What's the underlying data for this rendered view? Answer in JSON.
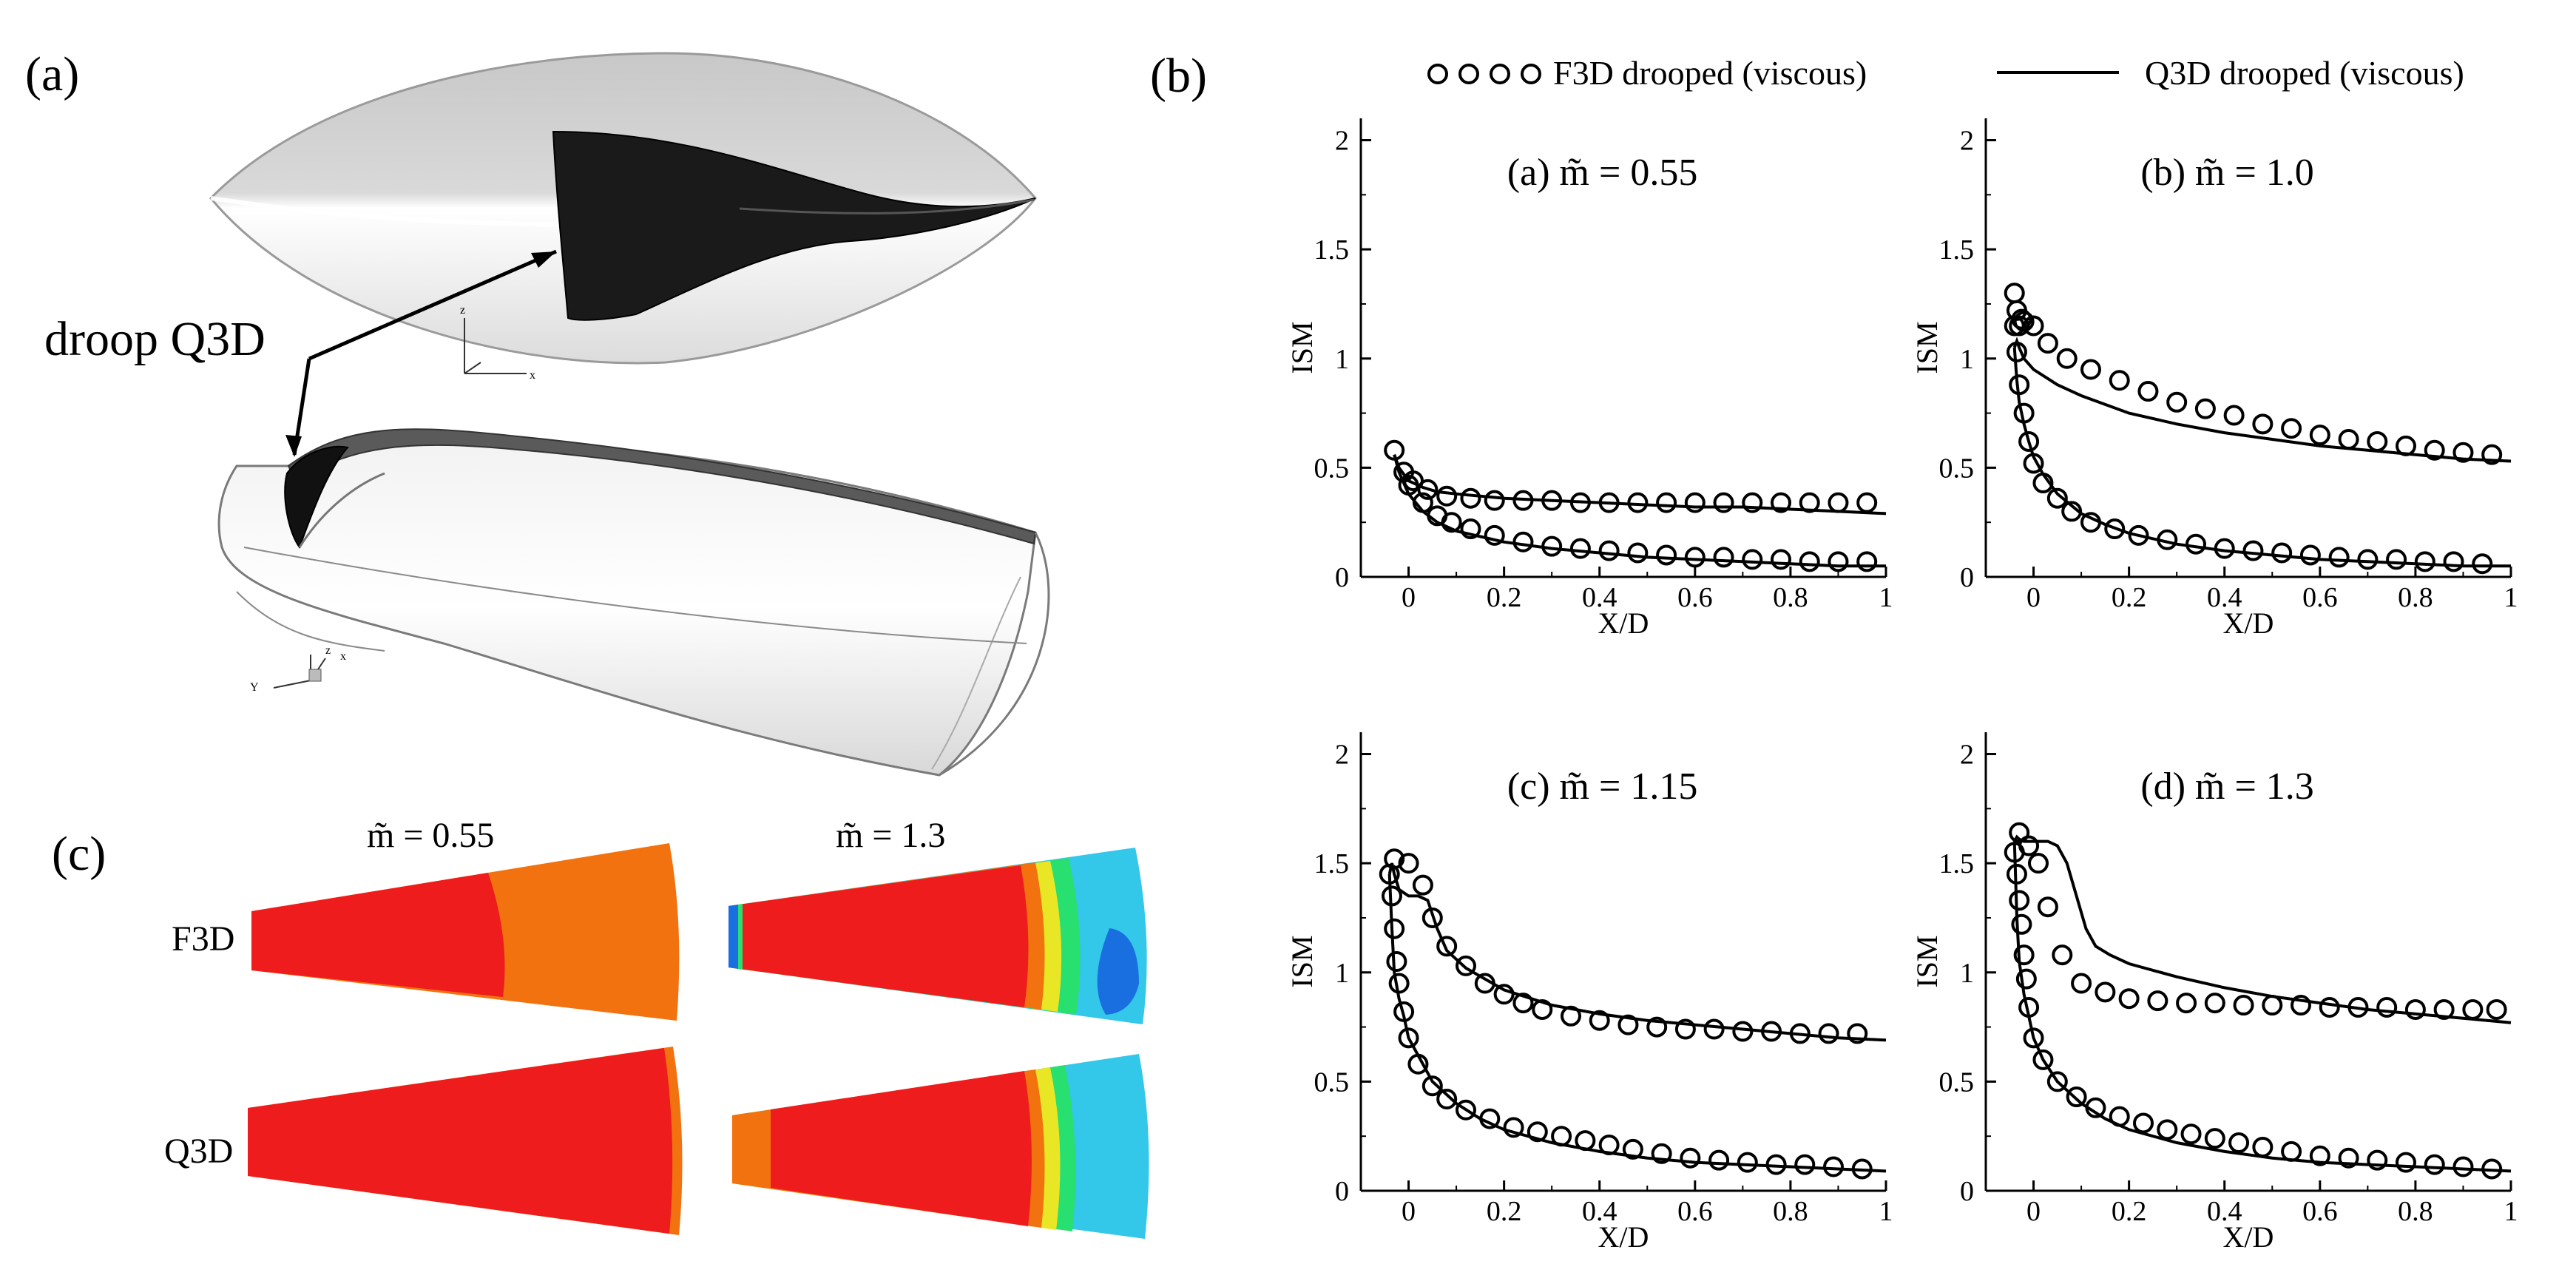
{
  "figure": {
    "panel_a_label": "(a)",
    "panel_b_label": "(b)",
    "panel_c_label": "(c)",
    "droop_annotation": "droop Q3D",
    "axis_triad_labels": [
      "z",
      "x",
      "Y",
      "z",
      "x"
    ]
  },
  "legend": {
    "markers_label": "F3D drooped (viscous)",
    "line_label": "Q3D drooped (viscous)"
  },
  "contours": {
    "col1_title": "m̃ = 0.55",
    "col2_title": "m̃ = 1.3",
    "row1_label": "F3D",
    "row2_label": "Q3D",
    "colors": {
      "red": "#ee1c1c",
      "orange": "#f2720f",
      "blue": "#1a6fe0",
      "cyan": "#33c7ea",
      "green": "#27e070",
      "yellow": "#e8e625"
    }
  },
  "chart_data": [
    {
      "type": "line",
      "title": "(a) m̃ = 0.55",
      "xlabel": "X/D",
      "ylabel": "ISM",
      "xlim": [
        -0.1,
        1.0
      ],
      "ylim": [
        0,
        2.1
      ],
      "xticks": [
        "0",
        "0.2",
        "0.4",
        "0.6",
        "0.8",
        "1"
      ],
      "yticks": [
        "0",
        "0.5",
        "1",
        "1.5",
        "2"
      ],
      "series": [
        {
          "name": "Q3D drooped (viscous)",
          "style": "line",
          "x": [
            -0.03,
            -0.02,
            0.0,
            0.03,
            0.06,
            0.1,
            0.2,
            0.3,
            0.4,
            0.5,
            0.6,
            0.7,
            0.8,
            0.9,
            1.0
          ],
          "y": [
            0.56,
            0.5,
            0.44,
            0.41,
            0.39,
            0.38,
            0.36,
            0.35,
            0.34,
            0.33,
            0.32,
            0.32,
            0.31,
            0.3,
            0.29
          ]
        },
        {
          "name": "Q3D drooped (viscous)",
          "style": "line",
          "x": [
            -0.03,
            -0.02,
            0.0,
            0.03,
            0.06,
            0.1,
            0.2,
            0.3,
            0.4,
            0.5,
            0.6,
            0.7,
            0.8,
            0.9,
            1.0
          ],
          "y": [
            0.56,
            0.48,
            0.38,
            0.3,
            0.25,
            0.21,
            0.16,
            0.13,
            0.11,
            0.09,
            0.08,
            0.07,
            0.06,
            0.05,
            0.05
          ]
        },
        {
          "name": "F3D drooped (viscous)",
          "style": "markers",
          "x": [
            -0.03,
            -0.01,
            0.01,
            0.04,
            0.08,
            0.13,
            0.18,
            0.24,
            0.3,
            0.36,
            0.42,
            0.48,
            0.54,
            0.6,
            0.66,
            0.72,
            0.78,
            0.84,
            0.9,
            0.96
          ],
          "y": [
            0.58,
            0.48,
            0.44,
            0.4,
            0.37,
            0.36,
            0.35,
            0.35,
            0.35,
            0.34,
            0.34,
            0.34,
            0.34,
            0.34,
            0.34,
            0.34,
            0.34,
            0.34,
            0.34,
            0.34
          ]
        },
        {
          "name": "F3D drooped (viscous)",
          "style": "markers",
          "x": [
            0.0,
            0.03,
            0.06,
            0.09,
            0.13,
            0.18,
            0.24,
            0.3,
            0.36,
            0.42,
            0.48,
            0.54,
            0.6,
            0.66,
            0.72,
            0.78,
            0.84,
            0.9,
            0.96
          ],
          "y": [
            0.42,
            0.34,
            0.28,
            0.25,
            0.22,
            0.19,
            0.16,
            0.14,
            0.13,
            0.12,
            0.11,
            0.1,
            0.09,
            0.09,
            0.08,
            0.08,
            0.07,
            0.07,
            0.07
          ]
        }
      ]
    },
    {
      "type": "line",
      "title": "(b) m̃ = 1.0",
      "xlabel": "X/D",
      "ylabel": "ISM",
      "xlim": [
        -0.1,
        1.0
      ],
      "ylim": [
        0,
        2.1
      ],
      "xticks": [
        "0",
        "0.2",
        "0.4",
        "0.6",
        "0.8",
        "1"
      ],
      "yticks": [
        "0",
        "0.5",
        "1",
        "1.5",
        "2"
      ],
      "series": [
        {
          "name": "Q3D drooped (viscous)",
          "style": "line",
          "x": [
            -0.04,
            -0.035,
            -0.03,
            -0.02,
            0.0,
            0.05,
            0.1,
            0.2,
            0.3,
            0.4,
            0.5,
            0.6,
            0.7,
            0.8,
            0.9,
            1.0
          ],
          "y": [
            1.05,
            1.08,
            1.05,
            1.0,
            0.95,
            0.88,
            0.83,
            0.75,
            0.7,
            0.66,
            0.63,
            0.6,
            0.58,
            0.56,
            0.54,
            0.53
          ]
        },
        {
          "name": "Q3D drooped (viscous)",
          "style": "line",
          "x": [
            -0.04,
            -0.035,
            -0.03,
            -0.02,
            -0.01,
            0.0,
            0.02,
            0.05,
            0.1,
            0.15,
            0.2,
            0.3,
            0.4,
            0.5,
            0.6,
            0.7,
            0.8,
            0.9,
            1.0
          ],
          "y": [
            1.05,
            0.9,
            0.8,
            0.7,
            0.62,
            0.55,
            0.47,
            0.38,
            0.29,
            0.24,
            0.2,
            0.15,
            0.12,
            0.1,
            0.08,
            0.07,
            0.06,
            0.05,
            0.05
          ]
        },
        {
          "name": "F3D drooped (viscous)",
          "style": "markers",
          "x": [
            -0.04,
            -0.035,
            -0.03,
            -0.025,
            -0.02,
            0.0,
            0.03,
            0.07,
            0.12,
            0.18,
            0.24,
            0.3,
            0.36,
            0.42,
            0.48,
            0.54,
            0.6,
            0.66,
            0.72,
            0.78,
            0.84,
            0.9,
            0.96
          ],
          "y": [
            1.3,
            1.22,
            1.15,
            1.18,
            1.17,
            1.15,
            1.07,
            1.0,
            0.95,
            0.9,
            0.85,
            0.8,
            0.77,
            0.74,
            0.7,
            0.68,
            0.65,
            0.63,
            0.62,
            0.6,
            0.58,
            0.57,
            0.56
          ]
        },
        {
          "name": "F3D drooped (viscous)",
          "style": "markers",
          "x": [
            -0.04,
            -0.035,
            -0.03,
            -0.02,
            -0.01,
            0.0,
            0.02,
            0.05,
            0.08,
            0.12,
            0.17,
            0.22,
            0.28,
            0.34,
            0.4,
            0.46,
            0.52,
            0.58,
            0.64,
            0.7,
            0.76,
            0.82,
            0.88,
            0.94
          ],
          "y": [
            1.15,
            1.03,
            0.88,
            0.75,
            0.62,
            0.52,
            0.43,
            0.36,
            0.3,
            0.25,
            0.22,
            0.19,
            0.17,
            0.15,
            0.13,
            0.12,
            0.11,
            0.1,
            0.09,
            0.08,
            0.08,
            0.07,
            0.07,
            0.06
          ]
        }
      ]
    },
    {
      "type": "line",
      "title": "(c) m̃ = 1.15",
      "xlabel": "X/D",
      "ylabel": "ISM",
      "xlim": [
        -0.1,
        1.0
      ],
      "ylim": [
        0,
        2.1
      ],
      "xticks": [
        "0",
        "0.2",
        "0.4",
        "0.6",
        "0.8",
        "1"
      ],
      "yticks": [
        "0",
        "0.5",
        "1",
        "1.5",
        "2"
      ],
      "series": [
        {
          "name": "Q3D drooped (viscous)",
          "style": "line",
          "x": [
            -0.04,
            -0.035,
            -0.03,
            -0.02,
            0.0,
            0.02,
            0.04,
            0.06,
            0.08,
            0.12,
            0.2,
            0.3,
            0.4,
            0.5,
            0.6,
            0.7,
            0.8,
            0.9,
            1.0
          ],
          "y": [
            1.45,
            1.5,
            1.45,
            1.38,
            1.35,
            1.35,
            1.33,
            1.2,
            1.1,
            1.02,
            0.92,
            0.85,
            0.81,
            0.78,
            0.76,
            0.74,
            0.72,
            0.7,
            0.69
          ]
        },
        {
          "name": "Q3D drooped (viscous)",
          "style": "line",
          "x": [
            -0.04,
            -0.035,
            -0.03,
            -0.02,
            -0.01,
            0.0,
            0.02,
            0.05,
            0.1,
            0.15,
            0.2,
            0.3,
            0.4,
            0.5,
            0.6,
            0.7,
            0.8,
            0.9,
            1.0
          ],
          "y": [
            1.45,
            1.2,
            1.0,
            0.88,
            0.8,
            0.7,
            0.62,
            0.5,
            0.4,
            0.33,
            0.28,
            0.22,
            0.18,
            0.15,
            0.13,
            0.12,
            0.11,
            0.1,
            0.09
          ]
        },
        {
          "name": "F3D drooped (viscous)",
          "style": "markers",
          "x": [
            -0.03,
            0.0,
            0.03,
            0.05,
            0.08,
            0.12,
            0.16,
            0.2,
            0.24,
            0.28,
            0.34,
            0.4,
            0.46,
            0.52,
            0.58,
            0.64,
            0.7,
            0.76,
            0.82,
            0.88,
            0.94
          ],
          "y": [
            1.52,
            1.5,
            1.4,
            1.25,
            1.12,
            1.03,
            0.95,
            0.9,
            0.86,
            0.83,
            0.8,
            0.78,
            0.76,
            0.75,
            0.74,
            0.74,
            0.73,
            0.73,
            0.72,
            0.72,
            0.72
          ]
        },
        {
          "name": "F3D drooped (viscous)",
          "style": "markers",
          "x": [
            -0.04,
            -0.035,
            -0.03,
            -0.025,
            -0.02,
            -0.01,
            0.0,
            0.02,
            0.05,
            0.08,
            0.12,
            0.17,
            0.22,
            0.27,
            0.32,
            0.37,
            0.42,
            0.47,
            0.53,
            0.59,
            0.65,
            0.71,
            0.77,
            0.83,
            0.89,
            0.95
          ],
          "y": [
            1.45,
            1.35,
            1.2,
            1.05,
            0.95,
            0.82,
            0.7,
            0.58,
            0.48,
            0.42,
            0.37,
            0.33,
            0.29,
            0.27,
            0.25,
            0.23,
            0.21,
            0.19,
            0.17,
            0.15,
            0.14,
            0.13,
            0.12,
            0.12,
            0.11,
            0.1
          ]
        }
      ]
    },
    {
      "type": "line",
      "title": "(d) m̃ = 1.3",
      "xlabel": "X/D",
      "ylabel": "ISM",
      "xlim": [
        -0.1,
        1.0
      ],
      "ylim": [
        0,
        2.1
      ],
      "xticks": [
        "0",
        "0.2",
        "0.4",
        "0.6",
        "0.8",
        "1"
      ],
      "yticks": [
        "0",
        "0.5",
        "1",
        "1.5",
        "2"
      ],
      "series": [
        {
          "name": "Q3D drooped (viscous)",
          "style": "line",
          "x": [
            -0.04,
            -0.035,
            -0.03,
            -0.02,
            0.0,
            0.03,
            0.05,
            0.07,
            0.09,
            0.11,
            0.13,
            0.16,
            0.2,
            0.3,
            0.4,
            0.5,
            0.6,
            0.7,
            0.8,
            0.9,
            1.0
          ],
          "y": [
            1.6,
            1.62,
            1.61,
            1.6,
            1.6,
            1.6,
            1.58,
            1.5,
            1.35,
            1.2,
            1.12,
            1.08,
            1.04,
            0.98,
            0.93,
            0.89,
            0.86,
            0.83,
            0.81,
            0.79,
            0.77
          ]
        },
        {
          "name": "Q3D drooped (viscous)",
          "style": "line",
          "x": [
            -0.04,
            -0.035,
            -0.03,
            -0.02,
            -0.01,
            0.0,
            0.02,
            0.05,
            0.1,
            0.15,
            0.2,
            0.3,
            0.4,
            0.5,
            0.6,
            0.7,
            0.8,
            0.9,
            1.0
          ],
          "y": [
            1.6,
            1.25,
            1.05,
            0.9,
            0.8,
            0.7,
            0.6,
            0.5,
            0.4,
            0.33,
            0.28,
            0.22,
            0.18,
            0.15,
            0.13,
            0.12,
            0.11,
            0.1,
            0.09
          ]
        },
        {
          "name": "F3D drooped (viscous)",
          "style": "markers",
          "x": [
            -0.03,
            -0.01,
            0.01,
            0.03,
            0.06,
            0.1,
            0.15,
            0.2,
            0.26,
            0.32,
            0.38,
            0.44,
            0.5,
            0.56,
            0.62,
            0.68,
            0.74,
            0.8,
            0.86,
            0.92,
            0.97
          ],
          "y": [
            1.64,
            1.58,
            1.5,
            1.3,
            1.08,
            0.95,
            0.91,
            0.88,
            0.87,
            0.86,
            0.86,
            0.85,
            0.85,
            0.85,
            0.84,
            0.84,
            0.84,
            0.83,
            0.83,
            0.83,
            0.83
          ]
        },
        {
          "name": "F3D drooped (viscous)",
          "style": "markers",
          "x": [
            -0.04,
            -0.035,
            -0.03,
            -0.025,
            -0.02,
            -0.015,
            -0.01,
            0.0,
            0.02,
            0.05,
            0.09,
            0.13,
            0.18,
            0.23,
            0.28,
            0.33,
            0.38,
            0.43,
            0.48,
            0.54,
            0.6,
            0.66,
            0.72,
            0.78,
            0.84,
            0.9,
            0.96
          ],
          "y": [
            1.55,
            1.45,
            1.33,
            1.22,
            1.08,
            0.97,
            0.84,
            0.7,
            0.6,
            0.5,
            0.43,
            0.38,
            0.34,
            0.31,
            0.28,
            0.26,
            0.24,
            0.22,
            0.2,
            0.18,
            0.16,
            0.15,
            0.14,
            0.13,
            0.12,
            0.11,
            0.1
          ]
        }
      ]
    }
  ]
}
